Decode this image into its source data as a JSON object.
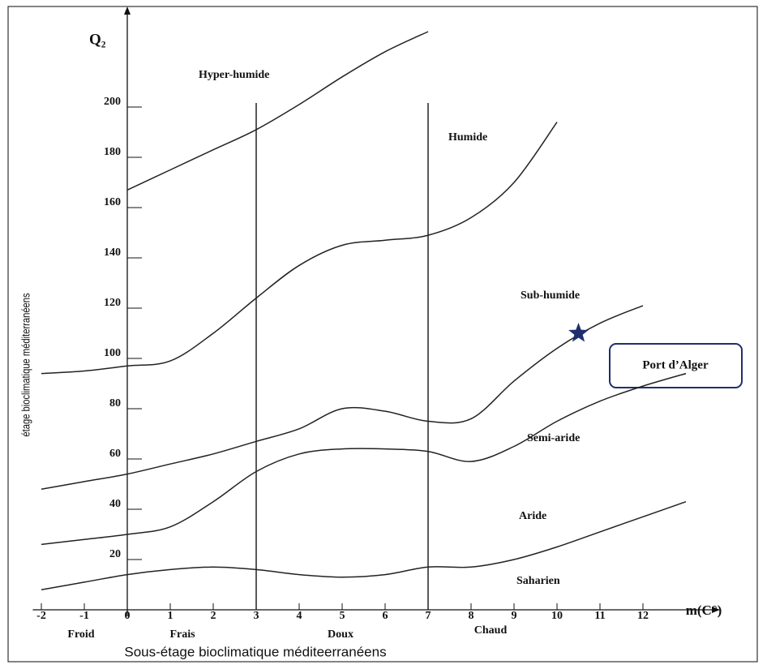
{
  "chart_data": {
    "type": "line",
    "ylabel": "étage bioclimatique méditerranéens",
    "y_axis_title": "Q₂",
    "xlabel": "m(C°)",
    "bottom_label": "Sous-étage bioclimatique méditeerranéens",
    "x": [
      -2,
      -1,
      0,
      1,
      2,
      3,
      4,
      5,
      6,
      7,
      8,
      9,
      10,
      11,
      12,
      13
    ],
    "series": [
      {
        "color": "#222222",
        "values": [
          null,
          null,
          167,
          175,
          183,
          191,
          201,
          212,
          222,
          230,
          null,
          null,
          null,
          null,
          null,
          null
        ]
      },
      {
        "color": "#222222",
        "values": [
          94,
          95,
          97,
          99,
          110,
          124,
          137,
          145,
          147,
          149,
          156,
          170,
          194,
          null,
          null,
          null
        ]
      },
      {
        "color": "#222222",
        "values": [
          48,
          51,
          54,
          58,
          62,
          67,
          72,
          80,
          79,
          75,
          76,
          91,
          104,
          114,
          121,
          null
        ]
      },
      {
        "color": "#222222",
        "values": [
          26,
          28,
          30,
          33,
          43,
          55,
          62,
          64,
          64,
          63,
          59,
          65,
          75,
          83,
          89,
          94
        ]
      },
      {
        "color": "#222222",
        "values": [
          8,
          11,
          14,
          16,
          17,
          16,
          14,
          13,
          14,
          17,
          17,
          20,
          25,
          31,
          37,
          43
        ]
      }
    ],
    "boundaries": [
      3,
      7
    ],
    "zones": [
      "Hyper-humide",
      "Humide",
      "Sub-humide",
      "Semi-aride",
      "Aride",
      "Saharien"
    ],
    "sub_zones": [
      "Froid",
      "Frais",
      "Doux",
      "Chaud"
    ],
    "point": {
      "label": "Port d’Alger",
      "x": 10.5,
      "y": 110,
      "color": "#1f2f6e"
    },
    "xlim": [
      -2.2,
      13.4
    ],
    "ylim": [
      0,
      240
    ],
    "xticks": [
      -2,
      -1,
      0,
      1,
      2,
      3,
      4,
      5,
      6,
      7,
      8,
      9,
      10,
      11,
      12
    ],
    "yticks": [
      20,
      40,
      60,
      80,
      100,
      120,
      140,
      160,
      180,
      200
    ]
  }
}
